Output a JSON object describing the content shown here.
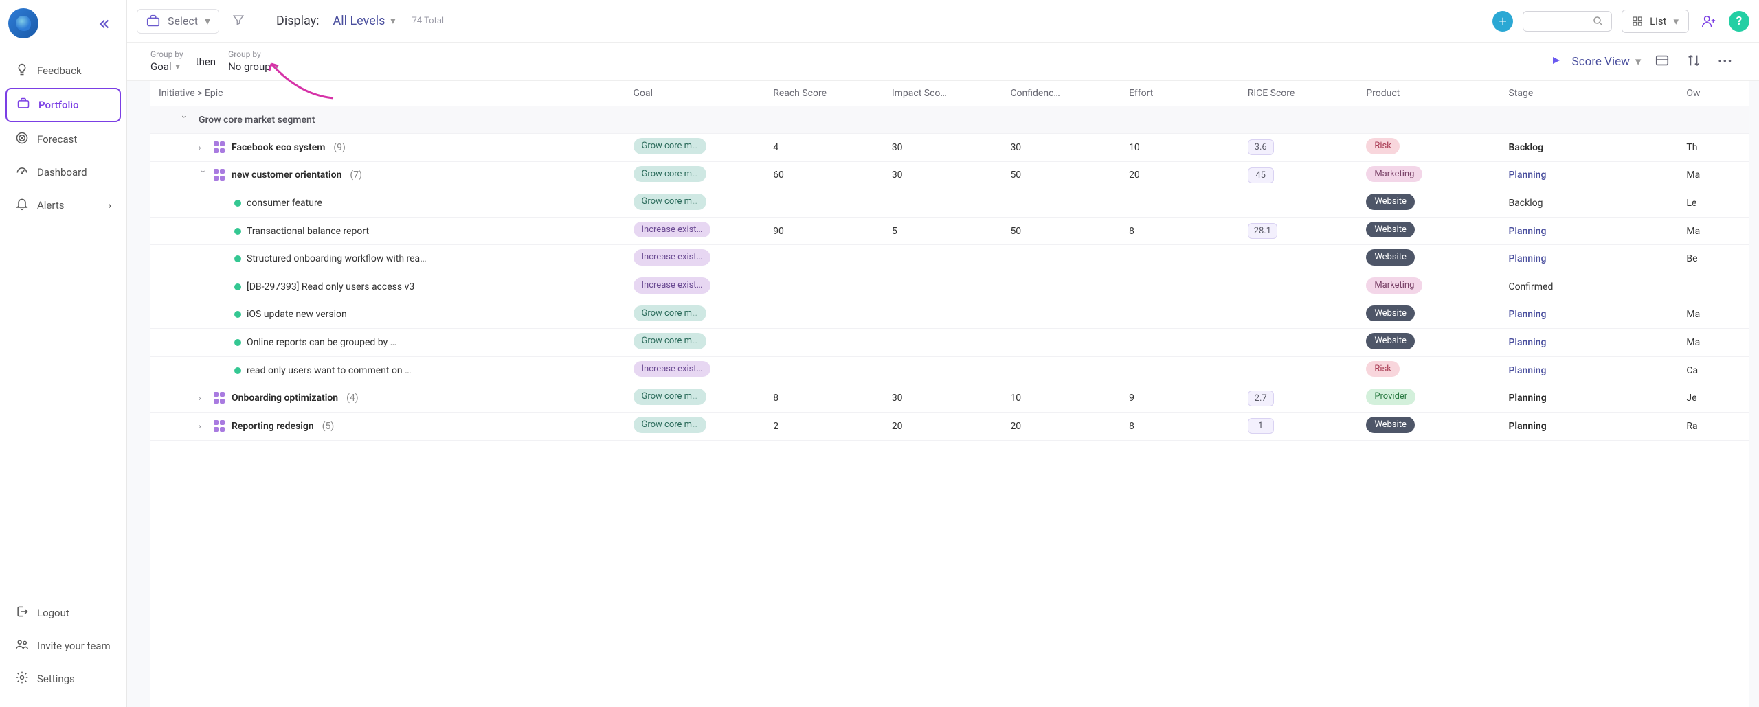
{
  "sidebar": {
    "items": [
      {
        "label": "Feedback",
        "icon": "bulb"
      },
      {
        "label": "Portfolio",
        "icon": "briefcase",
        "active": true
      },
      {
        "label": "Forecast",
        "icon": "target"
      },
      {
        "label": "Dashboard",
        "icon": "gauge"
      },
      {
        "label": "Alerts",
        "icon": "bell",
        "chevron": true
      }
    ],
    "bottom": [
      {
        "label": "Logout",
        "icon": "exit"
      },
      {
        "label": "Invite your team",
        "icon": "people"
      },
      {
        "label": "Settings",
        "icon": "gear"
      }
    ]
  },
  "toolbar": {
    "select_label": "Select",
    "display_label": "Display:",
    "display_value": "All Levels",
    "total": "74 Total",
    "view_mode": "List"
  },
  "subbar": {
    "groupby_label": "Group by",
    "group1": "Goal",
    "then": "then",
    "group2": "No group",
    "score_view": "Score View"
  },
  "columns": [
    "Initiative > Epic",
    "Goal",
    "Reach Score",
    "Impact Sco…",
    "Confidenc…",
    "Effort",
    "RICE Score",
    "Product",
    "Stage",
    "Ow"
  ],
  "group_header": "Grow core market segment",
  "colors": {
    "grow": "#cfe8e3",
    "inc": "#e7d7f2",
    "risk": "#f8d6dc",
    "mkt": "#f3d6e8",
    "web": "#4e5668",
    "prov": "#d3f0db",
    "accent": "#7b3fe4",
    "link": "#4a4f9e",
    "rice_bg": "#f3f0fd",
    "rice_border": "#d9d2f2"
  },
  "rows": [
    {
      "type": "epic",
      "indent": 1,
      "chev": "r",
      "name": "Facebook eco system",
      "count": "(9)",
      "goal": "Grow core m…",
      "goalClass": "grow",
      "reach": "4",
      "impact": "30",
      "conf": "30",
      "effort": "10",
      "rice": "3.6",
      "product": "Risk",
      "prodClass": "risk",
      "stage": "Backlog",
      "stageBold": true,
      "owner": "Th"
    },
    {
      "type": "epic",
      "indent": 1,
      "chev": "d",
      "name": "new customer orientation",
      "count": "(7)",
      "goal": "Grow core m…",
      "goalClass": "grow",
      "reach": "60",
      "impact": "30",
      "conf": "50",
      "effort": "20",
      "rice": "45",
      "product": "Marketing",
      "prodClass": "mkt",
      "stage": "Planning",
      "stageLink": true,
      "owner": "Ma"
    },
    {
      "type": "item",
      "indent": 3,
      "name": "consumer feature",
      "goal": "Grow core m…",
      "goalClass": "grow",
      "product": "Website",
      "prodClass": "web",
      "stage": "Backlog",
      "owner": "Le"
    },
    {
      "type": "item",
      "indent": 3,
      "name": "Transactional balance report",
      "goal": "Increase exist…",
      "goalClass": "inc",
      "reach": "90",
      "impact": "5",
      "conf": "50",
      "effort": "8",
      "rice": "28.1",
      "product": "Website",
      "prodClass": "web",
      "stage": "Planning",
      "stageLink": true,
      "owner": "Ma"
    },
    {
      "type": "item",
      "indent": 3,
      "name": "Structured onboarding workflow with rea…",
      "goal": "Increase exist…",
      "goalClass": "inc",
      "product": "Website",
      "prodClass": "web",
      "stage": "Planning",
      "stageLink": true,
      "owner": "Be"
    },
    {
      "type": "item",
      "indent": 3,
      "name": "[DB-297393] Read only users access v3",
      "goal": "Increase exist…",
      "goalClass": "inc",
      "product": "Marketing",
      "prodClass": "mkt",
      "stage": "Confirmed"
    },
    {
      "type": "item",
      "indent": 3,
      "name": "iOS update new version",
      "goal": "Grow core m…",
      "goalClass": "grow",
      "product": "Website",
      "prodClass": "web",
      "stage": "Planning",
      "stageLink": true,
      "owner": "Ma"
    },
    {
      "type": "item",
      "indent": 3,
      "name": "Online reports can be grouped by …",
      "goal": "Grow core m…",
      "goalClass": "grow",
      "product": "Website",
      "prodClass": "web",
      "stage": "Planning",
      "stageLink": true,
      "owner": "Ma"
    },
    {
      "type": "item",
      "indent": 3,
      "name": "read only users want to comment on …",
      "goal": "Increase exist…",
      "goalClass": "inc",
      "product": "Risk",
      "prodClass": "risk",
      "stage": "Planning",
      "stageLink": true,
      "owner": "Ca"
    },
    {
      "type": "epic",
      "indent": 1,
      "chev": "r",
      "name": "Onboarding optimization",
      "count": "(4)",
      "goal": "Grow core m…",
      "goalClass": "grow",
      "reach": "8",
      "impact": "30",
      "conf": "10",
      "effort": "9",
      "rice": "2.7",
      "product": "Provider",
      "prodClass": "prov",
      "stage": "Planning",
      "stageBold": true,
      "stageLink": true,
      "owner": "Je"
    },
    {
      "type": "epic",
      "indent": 1,
      "chev": "r",
      "name": "Reporting redesign",
      "count": "(5)",
      "goal": "Grow core m…",
      "goalClass": "grow",
      "reach": "2",
      "impact": "20",
      "conf": "20",
      "effort": "8",
      "rice": "1",
      "product": "Website",
      "prodClass": "web",
      "stage": "Planning",
      "stageBold": true,
      "stageLink": true,
      "owner": "Ra"
    }
  ]
}
